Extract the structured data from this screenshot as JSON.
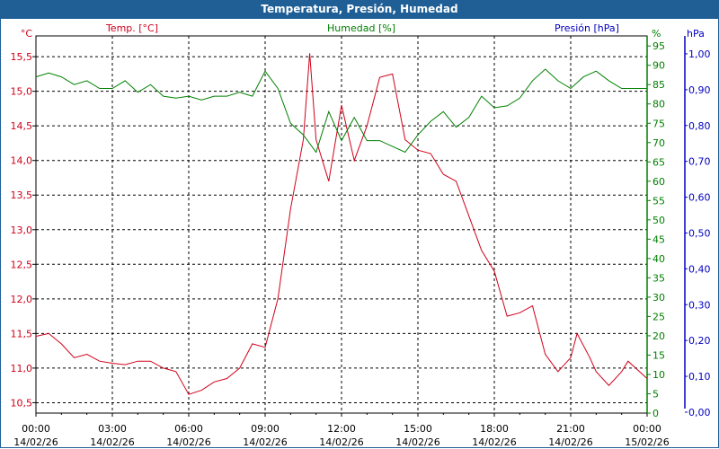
{
  "title": "Temperatura, Presión, Humedad",
  "chart_data": {
    "type": "line",
    "title": "Temperatura, Presión, Humedad",
    "colors": {
      "temp": "#d0001a",
      "hum": "#008000",
      "pres": "#0000c0",
      "header": "#1f5f96"
    },
    "x_ticks": [
      {
        "time": "00:00",
        "date": "14/02/26"
      },
      {
        "time": "03:00",
        "date": "14/02/26"
      },
      {
        "time": "06:00",
        "date": "14/02/26"
      },
      {
        "time": "09:00",
        "date": "14/02/26"
      },
      {
        "time": "12:00",
        "date": "14/02/26"
      },
      {
        "time": "15:00",
        "date": "14/02/26"
      },
      {
        "time": "18:00",
        "date": "14/02/26"
      },
      {
        "time": "21:00",
        "date": "14/02/26"
      },
      {
        "time": "00:00",
        "date": "15/02/26"
      }
    ],
    "xlim_hours": [
      0,
      24
    ],
    "axes": {
      "temp": {
        "legend": "Temp. [°C]",
        "unit": "°C",
        "ylim": [
          10.35,
          15.8
        ],
        "ticks": [
          "10,5",
          "11,0",
          "11,5",
          "12,0",
          "12,5",
          "13,0",
          "13,5",
          "14,0",
          "14,5",
          "15,0",
          "15,5"
        ]
      },
      "hum": {
        "legend": "Humedad [%]",
        "unit": "%",
        "ylim": [
          0,
          97.6
        ],
        "ticks": [
          "0",
          "5",
          "10",
          "15",
          "20",
          "25",
          "30",
          "35",
          "40",
          "45",
          "50",
          "55",
          "60",
          "65",
          "70",
          "75",
          "80",
          "85",
          "90",
          "95"
        ]
      },
      "pres": {
        "legend": "Presión [hPa]",
        "unit": "hPa",
        "ylim": [
          -0.0026,
          1.05
        ],
        "ticks": [
          "0,00",
          "0,10",
          "0,20",
          "0,30",
          "0,40",
          "0,50",
          "0,60",
          "0,70",
          "0,80",
          "0,90",
          "1,00"
        ]
      }
    },
    "series": [
      {
        "name": "Temp. [°C]",
        "axis": "temp",
        "x": [
          0,
          0.5,
          1,
          1.5,
          2,
          2.5,
          3,
          3.5,
          4,
          4.5,
          5,
          5.5,
          6,
          6.5,
          7,
          7.5,
          8,
          8.5,
          9,
          9.5,
          10,
          10.5,
          10.75,
          11,
          11.5,
          12,
          12.5,
          13,
          13.5,
          14,
          14.5,
          15,
          15.5,
          16,
          16.5,
          17,
          17.5,
          18,
          18.5,
          19,
          19.5,
          20,
          20.5,
          21,
          21.25,
          21.75,
          22,
          22.5,
          23,
          23.25,
          24
        ],
        "y": [
          11.46,
          11.5,
          11.35,
          11.15,
          11.2,
          11.1,
          11.07,
          11.05,
          11.1,
          11.1,
          11.0,
          10.95,
          10.62,
          10.68,
          10.8,
          10.85,
          11.0,
          11.35,
          11.3,
          12.0,
          13.3,
          14.3,
          15.55,
          14.3,
          13.7,
          14.8,
          14.0,
          14.5,
          15.2,
          15.25,
          14.3,
          14.15,
          14.1,
          13.8,
          13.7,
          13.2,
          12.7,
          12.4,
          11.75,
          11.8,
          11.9,
          11.2,
          10.95,
          11.15,
          11.5,
          11.15,
          10.95,
          10.75,
          10.95,
          11.1,
          10.85
        ]
      },
      {
        "name": "Humedad [%]",
        "axis": "hum",
        "x": [
          0,
          0.5,
          1,
          1.5,
          2,
          2.5,
          3,
          3.5,
          4,
          4.5,
          5,
          5.5,
          6,
          6.5,
          7,
          7.5,
          8,
          8.5,
          9,
          9.5,
          10,
          10.5,
          11,
          11.5,
          12,
          12.5,
          13,
          13.5,
          14,
          14.5,
          15,
          15.5,
          16,
          16.5,
          17,
          17.5,
          18,
          18.5,
          19,
          19.5,
          20,
          20.5,
          21,
          21.5,
          22,
          22.5,
          23,
          23.5,
          24
        ],
        "y": [
          87,
          88,
          87,
          85,
          86,
          84,
          84,
          86,
          83,
          85,
          82,
          81.5,
          82,
          81,
          82,
          82,
          83,
          82,
          88.5,
          84,
          75,
          72,
          67.5,
          78,
          70.5,
          76.5,
          70.5,
          70.5,
          69,
          67.5,
          72,
          75.5,
          78,
          74,
          76.5,
          82,
          79,
          79.5,
          81.5,
          86,
          89,
          86,
          84,
          87,
          88.5,
          86,
          84,
          84,
          84
        ]
      }
    ]
  }
}
